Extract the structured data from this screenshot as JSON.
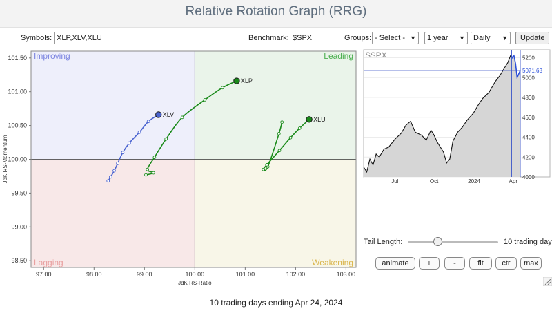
{
  "page_title": "Relative Rotation Graph (RRG)",
  "toolbar": {
    "symbols_label": "Symbols:",
    "symbols_value": "XLP,XLV,XLU",
    "benchmark_label": "Benchmark:",
    "benchmark_value": "$SPX",
    "groups_label": "Groups:",
    "groups_value": "- Select -",
    "period_value": "1 year",
    "frequency_value": "Daily",
    "update_label": "Update"
  },
  "chart_data": [
    {
      "type": "scatter",
      "subtype": "relative-rotation-graph",
      "xlabel": "JdK RS-Ratio",
      "ylabel": "JdK RS-Momentum",
      "xlim": [
        96.75,
        103.2
      ],
      "ylim": [
        98.4,
        101.6
      ],
      "center": [
        100,
        100
      ],
      "x_ticks": [
        "97.00",
        "98.00",
        "99.00",
        "100.00",
        "101.00",
        "102.00",
        "103.00"
      ],
      "y_ticks": [
        "98.50",
        "99.00",
        "99.50",
        "100.00",
        "100.50",
        "101.00",
        "101.50"
      ],
      "quadrants": {
        "top_left": "Improving",
        "top_right": "Leading",
        "bottom_left": "Lagging",
        "bottom_right": "Weakening"
      },
      "quadrant_colors": {
        "improving": "#eeeffb",
        "leading": "#eaf4ea",
        "lagging": "#f8e8e8",
        "weakening": "#f8f6e8",
        "improving_text": "#7b84e0",
        "leading_text": "#4caf50",
        "lagging_text": "#e8a0a0",
        "weakening_text": "#d9b44a"
      },
      "grid": false,
      "series": [
        {
          "name": "XLV",
          "color": "#4a63d0",
          "points": [
            [
              98.28,
              99.68
            ],
            [
              98.33,
              99.74
            ],
            [
              98.4,
              99.83
            ],
            [
              98.47,
              99.94
            ],
            [
              98.57,
              100.1
            ],
            [
              98.7,
              100.24
            ],
            [
              98.9,
              100.4
            ],
            [
              99.08,
              100.56
            ],
            [
              99.28,
              100.66
            ]
          ]
        },
        {
          "name": "XLP",
          "color": "#1a8a1a",
          "points": [
            [
              99.03,
              99.77
            ],
            [
              99.18,
              99.8
            ],
            [
              99.06,
              99.85
            ],
            [
              99.2,
              100.03
            ],
            [
              99.43,
              100.3
            ],
            [
              99.75,
              100.62
            ],
            [
              100.2,
              100.88
            ],
            [
              100.55,
              101.06
            ],
            [
              100.83,
              101.16
            ]
          ]
        },
        {
          "name": "XLU",
          "color": "#1a8a1a",
          "points": [
            [
              101.73,
              100.55
            ],
            [
              101.67,
              100.38
            ],
            [
              101.45,
              99.89
            ],
            [
              101.36,
              99.85
            ],
            [
              101.43,
              99.92
            ],
            [
              101.68,
              100.13
            ],
            [
              101.9,
              100.32
            ],
            [
              102.08,
              100.46
            ],
            [
              102.27,
              100.59
            ]
          ]
        }
      ]
    },
    {
      "type": "line",
      "title": "$SPX",
      "x_ticks": [
        "Jul",
        "Oct",
        "2024",
        "Apr"
      ],
      "y_ticks": [
        "4000",
        "4200",
        "4400",
        "4600",
        "4800",
        "5000",
        "5200"
      ],
      "ylim": [
        4000,
        5280
      ],
      "last_value": "5071.63",
      "tail_highlight_start": 0.945,
      "x": [
        0,
        0.02,
        0.04,
        0.06,
        0.08,
        0.1,
        0.13,
        0.16,
        0.2,
        0.24,
        0.27,
        0.3,
        0.33,
        0.37,
        0.4,
        0.43,
        0.45,
        0.47,
        0.49,
        0.51,
        0.53,
        0.55,
        0.57,
        0.6,
        0.63,
        0.66,
        0.7,
        0.73,
        0.76,
        0.8,
        0.84,
        0.87,
        0.9,
        0.92,
        0.94,
        0.95,
        0.96,
        0.97,
        0.98,
        1.0
      ],
      "values": [
        4100,
        4050,
        4180,
        4120,
        4230,
        4200,
        4280,
        4300,
        4380,
        4440,
        4520,
        4560,
        4450,
        4420,
        4370,
        4470,
        4420,
        4350,
        4300,
        4250,
        4140,
        4180,
        4360,
        4450,
        4500,
        4570,
        4640,
        4720,
        4790,
        4850,
        4960,
        5020,
        5100,
        5150,
        5230,
        5200,
        5220,
        5140,
        5000,
        5072
      ]
    }
  ],
  "tail": {
    "label": "Tail Length:",
    "value_label": "10 trading days",
    "value": 10
  },
  "controls": {
    "animate": "animate",
    "plus": "+",
    "minus": "-",
    "fit": "fit",
    "ctr": "ctr",
    "max": "max"
  },
  "footer": "10 trading days ending Apr 24, 2024"
}
